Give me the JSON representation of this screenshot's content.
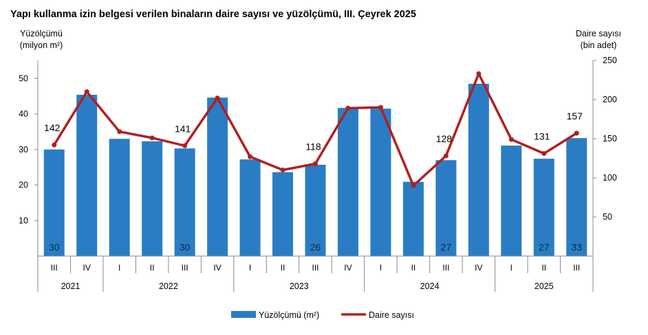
{
  "chart_data": {
    "type": "bar+line",
    "title": "Yapı kullanma izin belgesi verilen binaların daire sayısı ve yüzölçümü, III. Çeyrek 2025",
    "ylabel_left": [
      "Yüzölçümü",
      "(milyon m²)"
    ],
    "ylabel_right": [
      "Daire sayısı",
      "(bin adet)"
    ],
    "ylim_left": [
      0,
      50
    ],
    "ylim_right": [
      0,
      250
    ],
    "yticks_left": [
      10,
      20,
      30,
      40,
      50
    ],
    "yticks_right": [
      50,
      100,
      150,
      200,
      250
    ],
    "quarters": [
      "III",
      "IV",
      "I",
      "II",
      "III",
      "IV",
      "I",
      "II",
      "III",
      "IV",
      "I",
      "II",
      "III",
      "IV",
      "I",
      "II",
      "III"
    ],
    "years": [
      {
        "label": "2021",
        "span": 2
      },
      {
        "label": "2022",
        "span": 4
      },
      {
        "label": "2023",
        "span": 4
      },
      {
        "label": "2024",
        "span": 4
      },
      {
        "label": "2025",
        "span": 3
      }
    ],
    "series": [
      {
        "name": "Yüzölçümü (m²)",
        "type": "bar",
        "axis": "left",
        "color": "#2a7dc4",
        "values": [
          30,
          45.4,
          33,
          32.3,
          30.3,
          44.6,
          27.2,
          23.6,
          25.7,
          41.7,
          41.5,
          20.9,
          27,
          48.5,
          31.1,
          27.4,
          33.2
        ],
        "labels": [
          "30",
          "",
          "",
          "",
          "30",
          "",
          "",
          "",
          "26",
          "",
          "",
          "",
          "27",
          "",
          "",
          "27",
          "33"
        ]
      },
      {
        "name": "Daire sayısı",
        "type": "line",
        "axis": "right",
        "color": "#b02020",
        "values": [
          142,
          210,
          159,
          151,
          141,
          202,
          127,
          110,
          118,
          189,
          190,
          90,
          128,
          233,
          149,
          131,
          157
        ],
        "labels": [
          "142",
          "",
          "",
          "",
          "141",
          "",
          "",
          "",
          "118",
          "",
          "",
          "",
          "128",
          "",
          "",
          "131",
          "157"
        ]
      }
    ],
    "legend": "bottom"
  }
}
